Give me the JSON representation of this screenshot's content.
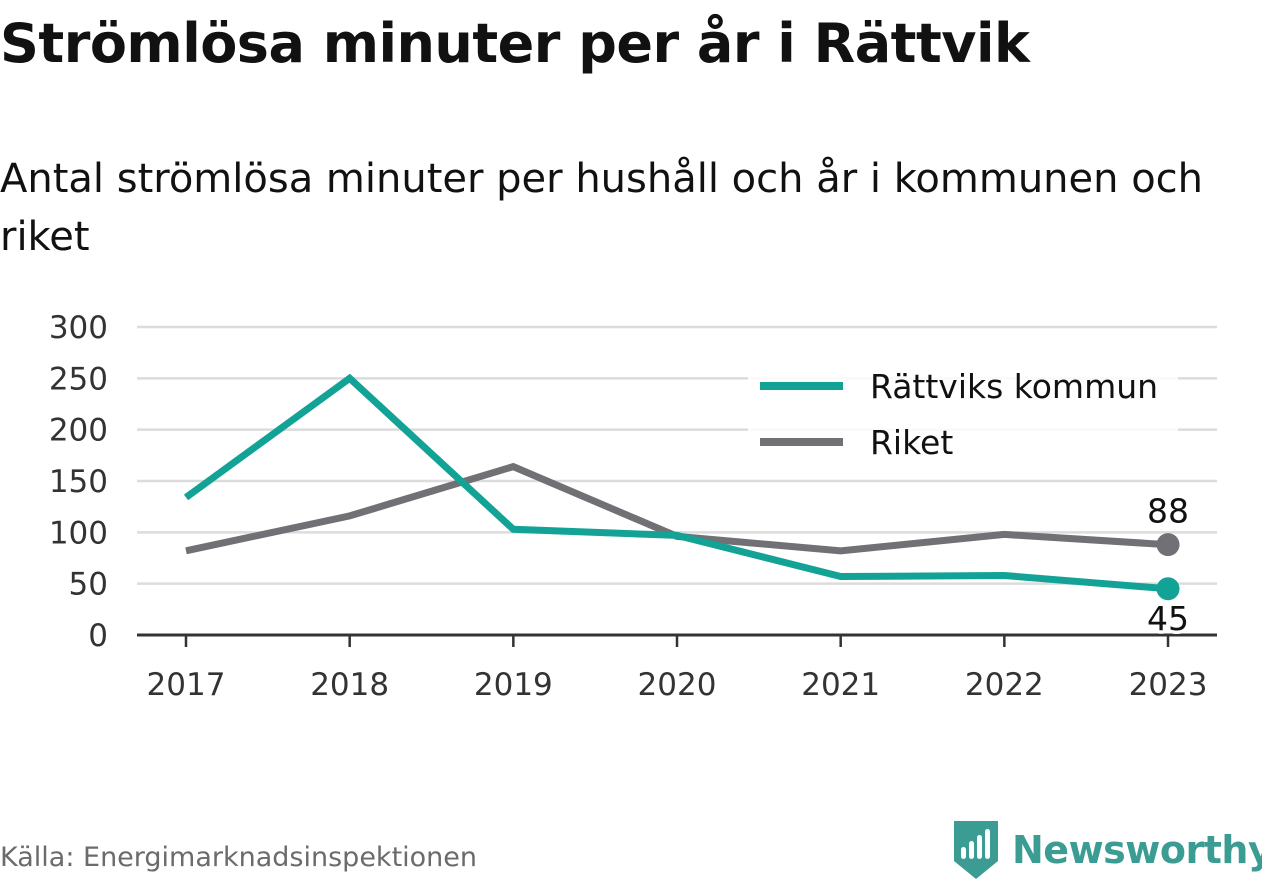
{
  "title": "Strömlösa minuter per år i Rättvik",
  "subtitle": "Antal strömlösa minuter per hushåll och år i kommunen och riket",
  "source": "Källa: Energimarknadsinspektionen",
  "brand": {
    "name": "Newsworthy",
    "color": "#3a9c92",
    "icon": "bar-chart-tag-icon"
  },
  "chart_data": {
    "type": "line",
    "x": [
      "2017",
      "2018",
      "2019",
      "2020",
      "2021",
      "2022",
      "2023"
    ],
    "ylim": [
      0,
      300
    ],
    "yticks": [
      0,
      50,
      100,
      150,
      200,
      250,
      300
    ],
    "grid": true,
    "legend_position": "top-right",
    "series": [
      {
        "name": "Rättviks kommun",
        "color": "#13a396",
        "values": [
          134,
          250,
          103,
          97,
          57,
          58,
          45
        ],
        "end_label": "45"
      },
      {
        "name": "Riket",
        "color": "#707075",
        "values": [
          82,
          116,
          164,
          96,
          82,
          98,
          88
        ],
        "end_label": "88"
      }
    ]
  }
}
